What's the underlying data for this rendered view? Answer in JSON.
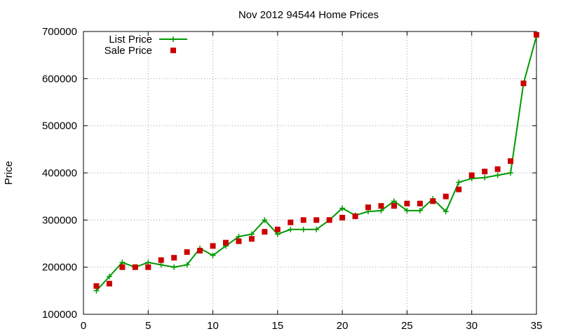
{
  "chart_data": {
    "type": "line",
    "title": "Nov 2012 94544 Home Prices",
    "xlabel": "",
    "ylabel": "Price",
    "xlim": [
      0,
      35
    ],
    "ylim": [
      100000,
      700000
    ],
    "xticks": [
      0,
      5,
      10,
      15,
      20,
      25,
      30,
      35
    ],
    "yticks": [
      100000,
      200000,
      300000,
      400000,
      500000,
      600000,
      700000
    ],
    "grid": true,
    "legend_position": "top-left",
    "series": [
      {
        "name": "List Price",
        "style": "line+cross",
        "color": "#009900",
        "x": [
          1,
          2,
          3,
          4,
          5,
          6,
          7,
          8,
          9,
          10,
          11,
          12,
          13,
          14,
          15,
          16,
          17,
          18,
          19,
          20,
          21,
          22,
          23,
          24,
          25,
          26,
          27,
          28,
          29,
          30,
          31,
          32,
          33,
          34,
          35
        ],
        "y": [
          150000,
          180000,
          210000,
          200000,
          210000,
          205000,
          200000,
          205000,
          240000,
          225000,
          245000,
          265000,
          270000,
          300000,
          270000,
          280000,
          280000,
          280000,
          300000,
          325000,
          310000,
          318000,
          320000,
          340000,
          320000,
          320000,
          345000,
          318000,
          380000,
          388000,
          390000,
          395000,
          400000,
          590000,
          690000
        ]
      },
      {
        "name": "Sale Price",
        "style": "square",
        "color": "#cc0000",
        "x": [
          1,
          2,
          3,
          4,
          5,
          6,
          7,
          8,
          9,
          10,
          11,
          12,
          13,
          14,
          15,
          16,
          17,
          18,
          19,
          20,
          21,
          22,
          23,
          24,
          25,
          26,
          27,
          28,
          29,
          30,
          31,
          32,
          33,
          34,
          35
        ],
        "y": [
          160000,
          165000,
          200000,
          200000,
          200000,
          215000,
          220000,
          232000,
          235000,
          245000,
          252000,
          255000,
          260000,
          275000,
          280000,
          295000,
          300000,
          300000,
          300000,
          305000,
          308000,
          327000,
          330000,
          330000,
          335000,
          335000,
          340000,
          350000,
          365000,
          395000,
          403000,
          408000,
          425000,
          590000,
          693000
        ]
      }
    ]
  }
}
